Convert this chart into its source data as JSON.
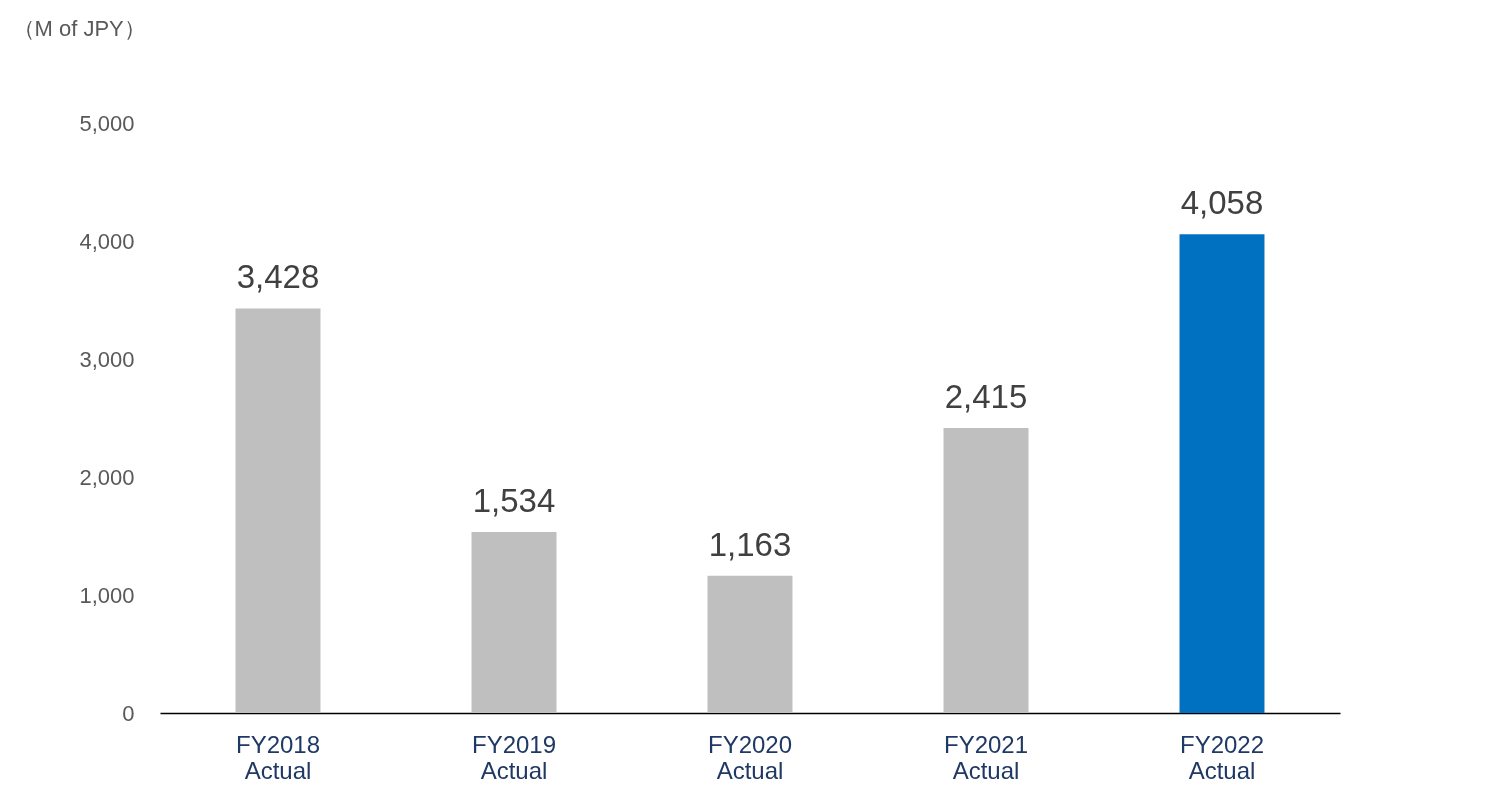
{
  "chart_data": {
    "type": "bar",
    "ylabel": "（M of JPY）",
    "categories": [
      "FY2018 Actual",
      "FY2019 Actual",
      "FY2020 Actual",
      "FY2021 Actual",
      "FY2022 Actual"
    ],
    "values": [
      3428,
      1534,
      1163,
      2415,
      4058
    ],
    "value_labels": [
      "3,428",
      "1,534",
      "1,163",
      "2,415",
      "4,058"
    ],
    "colors": [
      "#bfbfbf",
      "#bfbfbf",
      "#bfbfbf",
      "#bfbfbf",
      "#0070c0"
    ],
    "ylim": [
      0,
      5000
    ],
    "yticks": [
      0,
      {
        "value": 1000,
        "label": "1,000"
      },
      {
        "value": 2000,
        "label": "2,000"
      },
      {
        "value": 3000,
        "label": "3,000"
      },
      {
        "value": 4000,
        "label": "4,000"
      },
      {
        "value": 5000,
        "label": "5,000"
      }
    ],
    "grid": false
  }
}
